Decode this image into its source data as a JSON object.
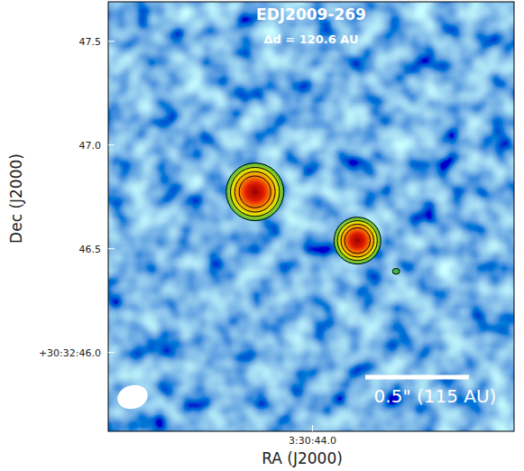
{
  "chart_data": {
    "type": "image",
    "title": "EDJ2009-269",
    "subtitle": "Δd = 120.6 AU",
    "x_label": "RA (J2000)",
    "y_label": "Dec (J2000)",
    "xlim": [
      44.076,
      43.925
    ],
    "ylim": [
      45.62,
      47.69
    ],
    "xticks": [
      {
        "value": 44.0,
        "label": "3:30:44.0"
      }
    ],
    "yticks": [
      {
        "value": 46.0,
        "label": "+30:32:46.0"
      },
      {
        "value": 46.5,
        "label": "46.5"
      },
      {
        "value": 47.0,
        "label": "47.0"
      },
      {
        "value": 47.5,
        "label": "47.5"
      }
    ],
    "sources": [
      {
        "ra": 44.0214,
        "dec": 46.774
      },
      {
        "ra": 43.9833,
        "dec": 46.539
      },
      {
        "ra": 43.9689,
        "dec": 46.391
      }
    ],
    "scale_bar": {
      "length": 0.5,
      "label": "0.5\" (115 AU)"
    }
  }
}
